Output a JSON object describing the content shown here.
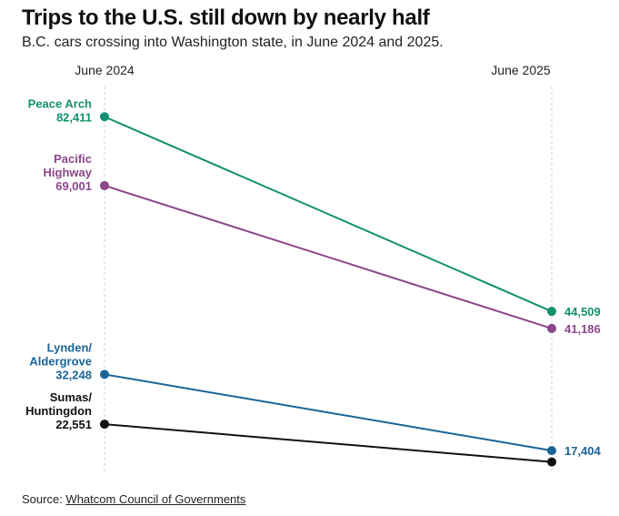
{
  "chart_data": {
    "type": "line",
    "title": "Trips to the U.S. still down by nearly half",
    "subtitle": "B.C. cars crossing into Washington state, in June 2024 and 2025.",
    "categories": [
      "June 2024",
      "June 2025"
    ],
    "ylim": [
      13000,
      86000
    ],
    "series": [
      {
        "name": "Peace Arch",
        "name_lines": [
          "Peace Arch"
        ],
        "values": [
          82411,
          44509
        ],
        "labels": [
          "82,411",
          "44,509"
        ],
        "color": "#13906f"
      },
      {
        "name": "Pacific Highway",
        "name_lines": [
          "Pacific",
          "Highway"
        ],
        "values": [
          69001,
          41186
        ],
        "labels": [
          "69,001",
          "41,186"
        ],
        "color": "#8b4789"
      },
      {
        "name": "Lynden/Aldergrove",
        "name_lines": [
          "Lynden/",
          "Aldergrove"
        ],
        "values": [
          32248,
          17404
        ],
        "labels": [
          "32,248",
          "17,404"
        ],
        "color": "#1a6496"
      },
      {
        "name": "Sumas/Huntingdon",
        "name_lines": [
          "Sumas/",
          "Huntingdon"
        ],
        "values": [
          22551,
          null
        ],
        "labels": [
          "22,551",
          ""
        ],
        "end_value": 15200,
        "color": "#111111"
      }
    ]
  },
  "source": {
    "prefix": "Source: ",
    "link_text": "Whatcom Council of Governments"
  }
}
